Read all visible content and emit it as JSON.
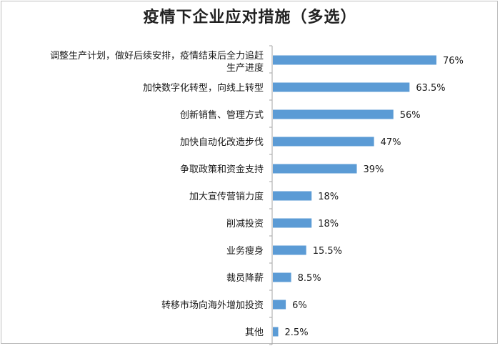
{
  "chart_data": {
    "type": "bar",
    "orientation": "horizontal",
    "title": "疫情下企业应对措施（多选）",
    "unit": "%",
    "categories": [
      "调整生产计划，做好后续安排，疫情结束后全力追赶生产进度",
      "加快数字化转型，向线上转型",
      "创新销售、管理方式",
      "加快自动化改造步伐",
      "争取政策和资金支持",
      "加大宣传营销力度",
      "削减投资",
      "业务瘦身",
      "裁员降薪",
      "转移市场向海外增加投资",
      "其他"
    ],
    "category_lines": [
      [
        "调整生产计划，做好后续安排，疫情结束后全力追赶",
        "生产进度"
      ],
      [
        "加快数字化转型，向线上转型"
      ],
      [
        "创新销售、管理方式"
      ],
      [
        "加快自动化改造步伐"
      ],
      [
        "争取政策和资金支持"
      ],
      [
        "加大宣传营销力度"
      ],
      [
        "削减投资"
      ],
      [
        "业务瘦身"
      ],
      [
        "裁员降薪"
      ],
      [
        "转移市场向海外增加投资"
      ],
      [
        "其他"
      ]
    ],
    "values": [
      76,
      63.5,
      56,
      47,
      39,
      18,
      18,
      15.5,
      8.5,
      6,
      2.5
    ],
    "value_labels": [
      "76%",
      "63.5%",
      "56%",
      "47%",
      "39%",
      "18%",
      "18%",
      "15.5%",
      "8.5%",
      "6%",
      "2.5%"
    ],
    "xlim": [
      0,
      76
    ],
    "grid": false,
    "legend": "none",
    "colors": {
      "bar": "#5B9BD5",
      "axis": "#a6a6a6"
    }
  }
}
